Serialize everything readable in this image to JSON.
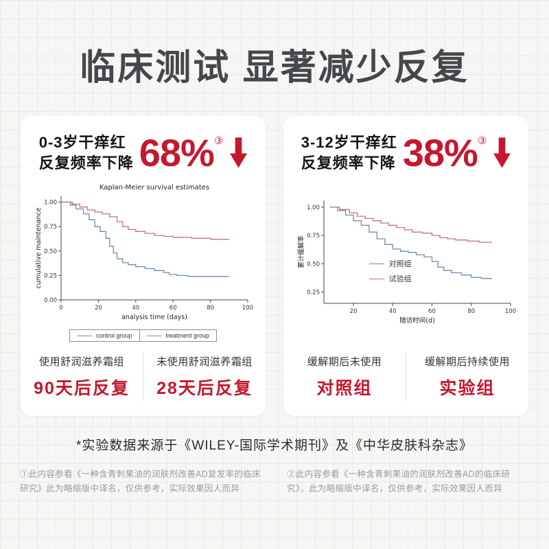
{
  "page": {
    "title": "临床测试 显著减少反复",
    "source_note": "*实验数据来源于《WILEY-国际学术期刊》及《中华皮肤科杂志》",
    "footnotes": [
      "①此内容参看《一种含青刺果油的润肤剂改善AD复发率的临床研究》此为略缩版中译名，仅供参考，实际效果因人而异",
      "②此内容参看《一种含青刺果油的润肤剂改善AD的临床研究》，此为略缩版中译名，仅供参考，实际效果因人而异"
    ]
  },
  "colors": {
    "accent_red": "#c5182e",
    "curve_blue": "#6b8cae",
    "curve_pink": "#c4707e"
  },
  "cards": [
    {
      "headline_line1": "0-3岁干痒红",
      "headline_line2": "反复频率下降",
      "percent": "68%",
      "ref": "③",
      "bottom": [
        {
          "label": "使用舒润滋养霜组",
          "value": "90天后反复"
        },
        {
          "label": "未使用舒润滋养霜组",
          "value": "28天后反复"
        }
      ]
    },
    {
      "headline_line1": "3-12岁干痒红",
      "headline_line2": "反复频率下降",
      "percent": "38%",
      "ref": "③",
      "bottom": [
        {
          "label": "缓解期后未使用",
          "value": "对照组"
        },
        {
          "label": "缓解期后持续使用",
          "value": "实验组"
        }
      ]
    }
  ],
  "chart_data": [
    {
      "type": "line",
      "step": true,
      "title": "Kaplan-Meier survival estimates",
      "xlabel": "analysis time (days)",
      "ylabel": "cumulative maintenance",
      "xlim": [
        0,
        100
      ],
      "ylim": [
        0,
        1.06
      ],
      "x_ticks": [
        0,
        20,
        40,
        60,
        80,
        100
      ],
      "y_ticks": [
        0.0,
        0.25,
        0.5,
        0.75,
        1.0
      ],
      "legend_position": "bottom",
      "series": [
        {
          "name": "control group",
          "color": "#6b8cae",
          "points": [
            [
              0,
              1.0
            ],
            [
              5,
              0.97
            ],
            [
              8,
              0.93
            ],
            [
              12,
              0.88
            ],
            [
              15,
              0.82
            ],
            [
              18,
              0.75
            ],
            [
              21,
              0.7
            ],
            [
              24,
              0.63
            ],
            [
              26,
              0.55
            ],
            [
              28,
              0.48
            ],
            [
              30,
              0.42
            ],
            [
              33,
              0.38
            ],
            [
              36,
              0.36
            ],
            [
              40,
              0.34
            ],
            [
              45,
              0.32
            ],
            [
              50,
              0.3
            ],
            [
              55,
              0.28
            ],
            [
              58,
              0.26
            ],
            [
              62,
              0.25
            ],
            [
              68,
              0.24
            ],
            [
              90,
              0.24
            ]
          ]
        },
        {
          "name": "treatment group",
          "color": "#c4707e",
          "points": [
            [
              0,
              1.0
            ],
            [
              6,
              0.98
            ],
            [
              10,
              0.95
            ],
            [
              14,
              0.92
            ],
            [
              18,
              0.9
            ],
            [
              22,
              0.88
            ],
            [
              26,
              0.85
            ],
            [
              30,
              0.8
            ],
            [
              33,
              0.75
            ],
            [
              36,
              0.72
            ],
            [
              40,
              0.7
            ],
            [
              45,
              0.68
            ],
            [
              50,
              0.66
            ],
            [
              55,
              0.65
            ],
            [
              60,
              0.64
            ],
            [
              70,
              0.63
            ],
            [
              80,
              0.62
            ],
            [
              90,
              0.62
            ]
          ]
        }
      ]
    },
    {
      "type": "line",
      "step": true,
      "title": "",
      "xlabel": "随访时间(d)",
      "ylabel": "累计缓解率",
      "xlim": [
        5,
        100
      ],
      "ylim": [
        0.15,
        1.06
      ],
      "x_ticks": [
        20,
        40,
        60,
        80,
        100
      ],
      "y_ticks": [
        0.25,
        0.5,
        0.75,
        1.0
      ],
      "legend_position": "inside",
      "series": [
        {
          "name": "对照组",
          "color": "#6b8cae",
          "points": [
            [
              8,
              1.0
            ],
            [
              12,
              0.97
            ],
            [
              16,
              0.93
            ],
            [
              20,
              0.88
            ],
            [
              24,
              0.84
            ],
            [
              28,
              0.78
            ],
            [
              32,
              0.72
            ],
            [
              36,
              0.67
            ],
            [
              40,
              0.63
            ],
            [
              44,
              0.61
            ],
            [
              48,
              0.6
            ],
            [
              52,
              0.58
            ],
            [
              56,
              0.56
            ],
            [
              60,
              0.52
            ],
            [
              63,
              0.47
            ],
            [
              66,
              0.44
            ],
            [
              70,
              0.42
            ],
            [
              75,
              0.4
            ],
            [
              80,
              0.38
            ],
            [
              85,
              0.37
            ],
            [
              90,
              0.36
            ]
          ]
        },
        {
          "name": "试验组",
          "color": "#c4707e",
          "points": [
            [
              8,
              1.0
            ],
            [
              13,
              0.98
            ],
            [
              18,
              0.95
            ],
            [
              22,
              0.92
            ],
            [
              26,
              0.9
            ],
            [
              30,
              0.88
            ],
            [
              34,
              0.86
            ],
            [
              38,
              0.84
            ],
            [
              42,
              0.82
            ],
            [
              46,
              0.8
            ],
            [
              50,
              0.78
            ],
            [
              55,
              0.77
            ],
            [
              60,
              0.75
            ],
            [
              64,
              0.73
            ],
            [
              68,
              0.72
            ],
            [
              72,
              0.71
            ],
            [
              78,
              0.7
            ],
            [
              84,
              0.69
            ],
            [
              90,
              0.68
            ]
          ]
        }
      ]
    }
  ]
}
